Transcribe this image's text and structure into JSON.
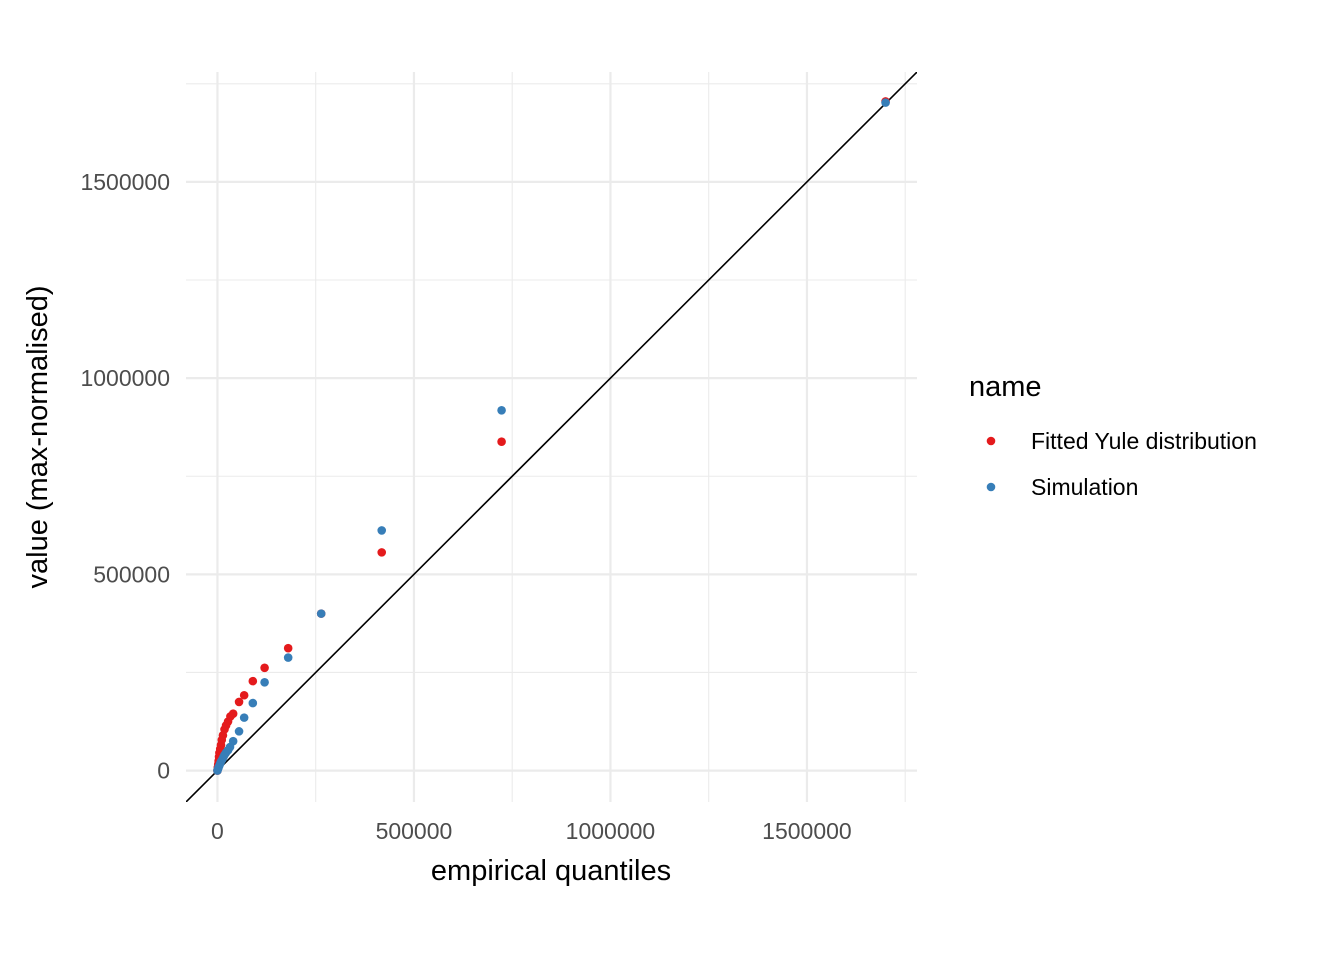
{
  "chart_data": {
    "type": "scatter",
    "title": "",
    "xlabel": "empirical quantiles",
    "ylabel": "value (max-normalised)",
    "xlim": [
      -80000,
      1780000
    ],
    "ylim": [
      -80000,
      1780000
    ],
    "x_ticks": [
      0,
      500000,
      1000000,
      1500000
    ],
    "y_ticks": [
      0,
      500000,
      1000000,
      1500000
    ],
    "x_tick_labels": [
      "0",
      "500000",
      "1000000",
      "1500000"
    ],
    "y_tick_labels": [
      "0",
      "500000",
      "1000000",
      "1500000"
    ],
    "grid": true,
    "reference_line": {
      "type": "identity",
      "slope": 1,
      "intercept": 0,
      "color": "#000000"
    },
    "legend": {
      "title": "name",
      "placement": "right",
      "entries": [
        "Fitted Yule distribution",
        "Simulation"
      ]
    },
    "series": [
      {
        "name": "Fitted Yule distribution",
        "color": "#E41A1C",
        "points": [
          [
            0,
            0
          ],
          [
            1000,
            8000
          ],
          [
            2000,
            16000
          ],
          [
            3000,
            25000
          ],
          [
            4000,
            35000
          ],
          [
            5000,
            45000
          ],
          [
            7000,
            55000
          ],
          [
            9000,
            65000
          ],
          [
            11000,
            78000
          ],
          [
            14000,
            90000
          ],
          [
            18000,
            105000
          ],
          [
            22000,
            115000
          ],
          [
            27000,
            125000
          ],
          [
            33000,
            138000
          ],
          [
            40000,
            145000
          ],
          [
            55000,
            175000
          ],
          [
            68000,
            192000
          ],
          [
            90000,
            228000
          ],
          [
            120000,
            262000
          ],
          [
            180000,
            312000
          ],
          [
            264000,
            400000
          ],
          [
            418000,
            556000
          ],
          [
            723000,
            838000
          ],
          [
            1700000,
            1705000
          ]
        ]
      },
      {
        "name": "Simulation",
        "color": "#377EB8",
        "points": [
          [
            0,
            0
          ],
          [
            1000,
            3000
          ],
          [
            2000,
            6000
          ],
          [
            3000,
            9000
          ],
          [
            5000,
            13000
          ],
          [
            7000,
            18000
          ],
          [
            9000,
            23000
          ],
          [
            12000,
            28000
          ],
          [
            15000,
            34000
          ],
          [
            18000,
            40000
          ],
          [
            22000,
            46000
          ],
          [
            27000,
            52000
          ],
          [
            32000,
            60000
          ],
          [
            40000,
            75000
          ],
          [
            55000,
            100000
          ],
          [
            68000,
            135000
          ],
          [
            90000,
            172000
          ],
          [
            120000,
            225000
          ],
          [
            180000,
            288000
          ],
          [
            264000,
            400000
          ],
          [
            418000,
            612000
          ],
          [
            723000,
            918000
          ],
          [
            1700000,
            1702000
          ]
        ]
      }
    ]
  }
}
